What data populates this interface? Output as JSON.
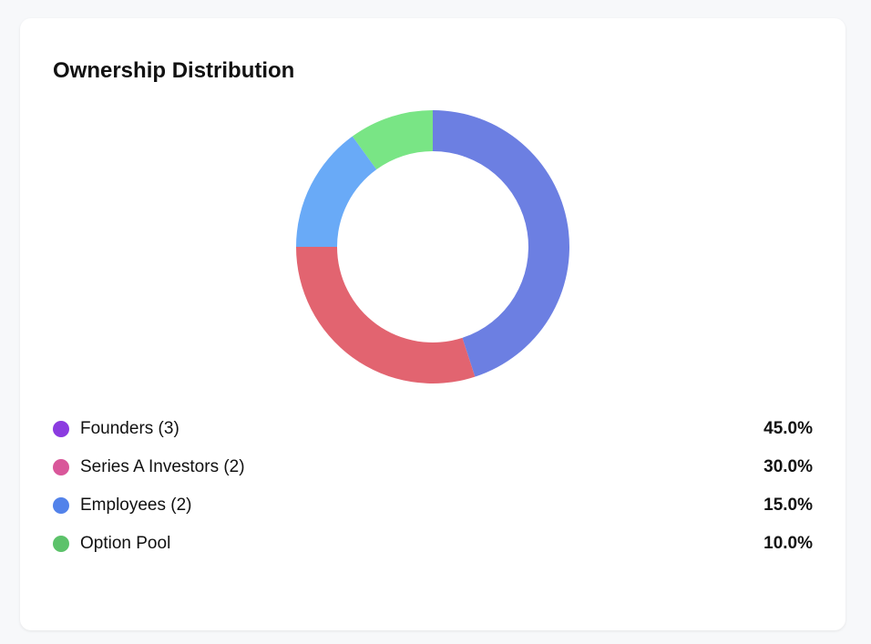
{
  "card": {
    "title": "Ownership Distribution"
  },
  "legend": [
    {
      "label": "Founders (3)",
      "value": "45.0%",
      "color": "#8b3be0"
    },
    {
      "label": "Series A Investors (2)",
      "value": "30.0%",
      "color": "#d9579a"
    },
    {
      "label": "Employees (2)",
      "value": "15.0%",
      "color": "#5282ea"
    },
    {
      "label": "Option Pool",
      "value": "10.0%",
      "color": "#5cc26a"
    }
  ],
  "chart_data": {
    "type": "pie",
    "title": "Ownership Distribution",
    "donut": true,
    "categories": [
      "Founders (3)",
      "Series A Investors (2)",
      "Employees (2)",
      "Option Pool"
    ],
    "values": [
      45.0,
      30.0,
      15.0,
      10.0
    ],
    "units": "%",
    "slice_colors": [
      "#6c7fe2",
      "#e26470",
      "#69aaf7",
      "#79e585"
    ],
    "legend_position": "bottom"
  }
}
